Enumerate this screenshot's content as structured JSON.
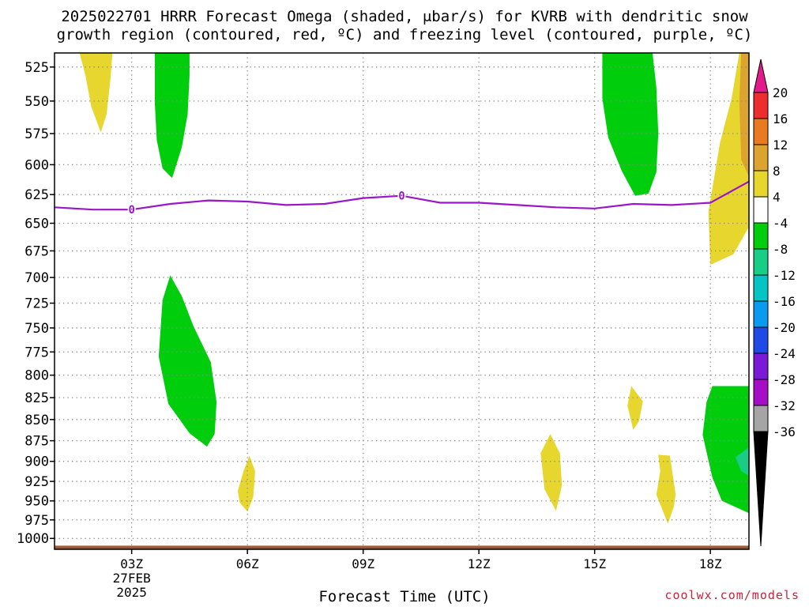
{
  "title": {
    "line1": "2025022701 HRRR Forecast Omega (shaded, μbar/s) for KVRB with dendritic snow",
    "line2": "growth region (contoured, red, ºC) and freezing level (contoured, purple, ºC)"
  },
  "credit": "coolwx.com/models",
  "chart_data": {
    "type": "contour",
    "title": "2025022701 HRRR Forecast Omega (shaded, μbar/s) for KVRB with dendritic snow growth region (contoured, red, ºC) and freezing level (contoured, purple, ºC)",
    "xlabel": "Forecast Time (UTC)",
    "ylabel": "",
    "xlim": [
      1,
      19
    ],
    "ylim": [
      1015,
      515
    ],
    "y_ticks": [
      525,
      550,
      575,
      600,
      625,
      650,
      675,
      700,
      725,
      750,
      775,
      800,
      825,
      850,
      875,
      900,
      925,
      950,
      975,
      1000
    ],
    "x_ticks": [
      {
        "x": 3,
        "label": "03Z",
        "sub1": "27FEB",
        "sub2": "2025"
      },
      {
        "x": 6,
        "label": "06Z"
      },
      {
        "x": 9,
        "label": "09Z"
      },
      {
        "x": 12,
        "label": "12Z"
      },
      {
        "x": 15,
        "label": "15Z"
      },
      {
        "x": 18,
        "label": "18Z"
      }
    ],
    "grid": true,
    "colorbar": {
      "top_color": "#e21a8a",
      "bottom_color": "#000000",
      "levels": [
        {
          "color": "#ee2e2e",
          "label": "20"
        },
        {
          "color": "#ea7a1f",
          "label": "16"
        },
        {
          "color": "#dca42e",
          "label": "12"
        },
        {
          "color": "#e6d62e",
          "label": "8"
        },
        {
          "color": "#ffffff",
          "label": "4"
        },
        {
          "color": "#00cd0c",
          "label": "-4"
        },
        {
          "color": "#18ce86",
          "label": "-8"
        },
        {
          "color": "#05c4c4",
          "label": "-12"
        },
        {
          "color": "#0a9bf0",
          "label": "-16"
        },
        {
          "color": "#1e4ae6",
          "label": "-20"
        },
        {
          "color": "#7a1ad8",
          "label": "-24"
        },
        {
          "color": "#a60dc6",
          "label": "-28"
        },
        {
          "color": "#a5a5a5",
          "label": "-32"
        }
      ],
      "bottom_label": "-36"
    },
    "freezing_level": {
      "color": "#9b16c8",
      "label": "0",
      "label_at": [
        3,
        10
      ],
      "x": [
        1,
        2,
        3,
        4,
        5,
        6,
        7,
        8,
        9,
        10,
        11,
        12,
        13,
        14,
        15,
        16,
        17,
        18,
        19
      ],
      "y": [
        636,
        638,
        638,
        633,
        630,
        631,
        634,
        633,
        628,
        626,
        632,
        632,
        634,
        636,
        637,
        633,
        634,
        632,
        614
      ]
    },
    "terrain": {
      "color": "#9e5a34",
      "from_hpa": 1010
    },
    "regions": [
      {
        "name": "yellow 4-8",
        "color": "#e6d62e",
        "points": [
          [
            1.65,
            515
          ],
          [
            2.5,
            515
          ],
          [
            2.45,
            534
          ],
          [
            2.35,
            560
          ],
          [
            2.2,
            574
          ],
          [
            1.95,
            554
          ],
          [
            1.8,
            531
          ]
        ]
      },
      {
        "name": "green -4 to -8",
        "color": "#00cd0c",
        "points": [
          [
            3.6,
            515
          ],
          [
            4.5,
            515
          ],
          [
            4.5,
            531
          ],
          [
            4.45,
            560
          ],
          [
            4.3,
            586
          ],
          [
            4.05,
            611
          ],
          [
            3.8,
            603
          ],
          [
            3.65,
            580
          ],
          [
            3.6,
            552
          ]
        ]
      },
      {
        "name": "green -4 to -8",
        "color": "#00cd0c",
        "points": [
          [
            4.0,
            698
          ],
          [
            4.3,
            718
          ],
          [
            4.6,
            748
          ],
          [
            5.05,
            786
          ],
          [
            5.2,
            830
          ],
          [
            5.15,
            867
          ],
          [
            4.95,
            882
          ],
          [
            4.5,
            866
          ],
          [
            3.95,
            832
          ],
          [
            3.7,
            780
          ],
          [
            3.8,
            722
          ]
        ]
      },
      {
        "name": "yellow 4-8",
        "color": "#e6d62e",
        "points": [
          [
            6.05,
            893
          ],
          [
            6.2,
            912
          ],
          [
            6.15,
            945
          ],
          [
            6.0,
            964
          ],
          [
            5.8,
            952
          ],
          [
            5.75,
            937
          ],
          [
            5.9,
            912
          ]
        ]
      },
      {
        "name": "yellow 4-8",
        "color": "#e6d62e",
        "points": [
          [
            13.85,
            867
          ],
          [
            14.1,
            890
          ],
          [
            14.15,
            930
          ],
          [
            14.0,
            963
          ],
          [
            13.7,
            935
          ],
          [
            13.6,
            890
          ]
        ]
      },
      {
        "name": "green -4 to -8",
        "color": "#00cd0c",
        "points": [
          [
            15.2,
            515
          ],
          [
            16.5,
            515
          ],
          [
            16.6,
            540
          ],
          [
            16.65,
            575
          ],
          [
            16.6,
            606
          ],
          [
            16.4,
            624
          ],
          [
            16.05,
            626
          ],
          [
            15.7,
            605
          ],
          [
            15.35,
            578
          ],
          [
            15.2,
            548
          ]
        ]
      },
      {
        "name": "yellow 4-8",
        "color": "#e6d62e",
        "points": [
          [
            15.95,
            812
          ],
          [
            16.25,
            829
          ],
          [
            16.15,
            852
          ],
          [
            16.0,
            862
          ],
          [
            15.85,
            834
          ]
        ]
      },
      {
        "name": "yellow 4-8",
        "color": "#e6d62e",
        "points": [
          [
            16.65,
            892
          ],
          [
            16.95,
            893
          ],
          [
            17.1,
            942
          ],
          [
            17.05,
            958
          ],
          [
            16.9,
            980
          ],
          [
            16.6,
            942
          ],
          [
            16.7,
            912
          ]
        ]
      },
      {
        "name": "yellow 4-8",
        "color": "#e6d62e",
        "points": [
          [
            18.75,
            515
          ],
          [
            19,
            515
          ],
          [
            19,
            653
          ],
          [
            18.6,
            678
          ],
          [
            18,
            688
          ],
          [
            17.95,
            640
          ],
          [
            18.1,
            610
          ],
          [
            18.25,
            582
          ],
          [
            18.55,
            548
          ]
        ]
      },
      {
        "name": "orange 8-12",
        "color": "#dca42e",
        "points": [
          [
            18.8,
            515
          ],
          [
            19,
            515
          ],
          [
            19,
            610
          ],
          [
            18.8,
            596
          ],
          [
            18.75,
            550
          ]
        ]
      },
      {
        "name": "green -4 to -8",
        "color": "#00cd0c",
        "points": [
          [
            18.05,
            812
          ],
          [
            19,
            812
          ],
          [
            19,
            966
          ],
          [
            18.3,
            950
          ],
          [
            18.05,
            920
          ],
          [
            17.8,
            868
          ],
          [
            17.9,
            830
          ]
        ]
      },
      {
        "name": "teal -8 to -12",
        "color": "#18ce86",
        "points": [
          [
            19,
            883
          ],
          [
            19,
            918
          ],
          [
            18.8,
            912
          ],
          [
            18.65,
            895
          ]
        ]
      }
    ]
  }
}
